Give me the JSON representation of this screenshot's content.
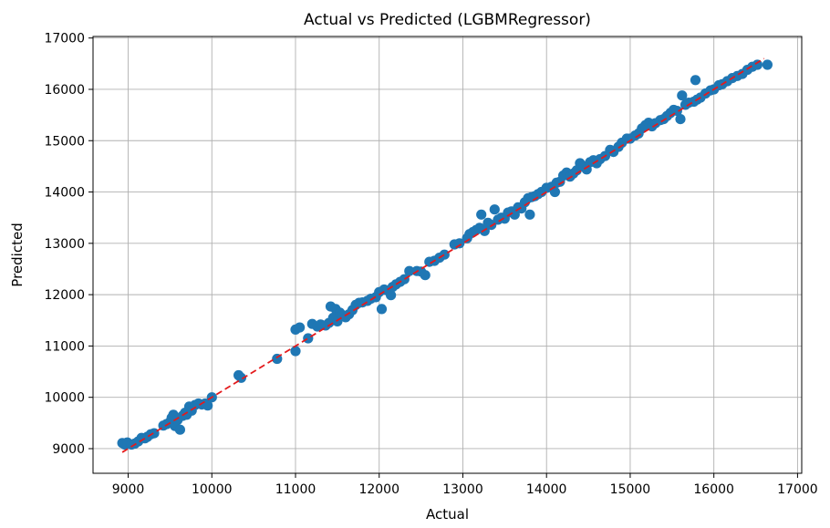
{
  "chart_data": {
    "type": "scatter",
    "title": "Actual vs Predicted (LGBMRegressor)",
    "xlabel": "Actual",
    "ylabel": "Predicted",
    "xlim": [
      8580,
      17050
    ],
    "ylim": [
      8520,
      17030
    ],
    "xticks": [
      9000,
      10000,
      11000,
      12000,
      13000,
      14000,
      15000,
      16000,
      17000
    ],
    "yticks": [
      9000,
      10000,
      11000,
      12000,
      13000,
      14000,
      15000,
      16000,
      17000
    ],
    "grid": true,
    "point_color": "#1f77b4",
    "reference_line": {
      "style": "dashed",
      "color": "#e41a1c",
      "from": [
        8930,
        8930
      ],
      "to": [
        16600,
        16600
      ]
    },
    "points": [
      [
        8930,
        9110
      ],
      [
        8960,
        9080
      ],
      [
        8990,
        9120
      ],
      [
        9040,
        9080
      ],
      [
        9080,
        9100
      ],
      [
        9120,
        9140
      ],
      [
        9160,
        9210
      ],
      [
        9200,
        9200
      ],
      [
        9230,
        9230
      ],
      [
        9270,
        9280
      ],
      [
        9310,
        9300
      ],
      [
        9420,
        9450
      ],
      [
        9460,
        9480
      ],
      [
        9500,
        9520
      ],
      [
        9520,
        9600
      ],
      [
        9540,
        9660
      ],
      [
        9560,
        9440
      ],
      [
        9590,
        9560
      ],
      [
        9620,
        9370
      ],
      [
        9650,
        9640
      ],
      [
        9680,
        9700
      ],
      [
        9700,
        9660
      ],
      [
        9730,
        9820
      ],
      [
        9760,
        9740
      ],
      [
        9800,
        9850
      ],
      [
        9840,
        9880
      ],
      [
        9880,
        9860
      ],
      [
        9920,
        9880
      ],
      [
        9950,
        9840
      ],
      [
        10000,
        10000
      ],
      [
        10320,
        10430
      ],
      [
        10350,
        10380
      ],
      [
        10780,
        10750
      ],
      [
        11000,
        10900
      ],
      [
        11000,
        11320
      ],
      [
        11050,
        11360
      ],
      [
        11150,
        11150
      ],
      [
        11200,
        11430
      ],
      [
        11260,
        11380
      ],
      [
        11300,
        11420
      ],
      [
        11360,
        11400
      ],
      [
        11400,
        11450
      ],
      [
        11420,
        11770
      ],
      [
        11450,
        11550
      ],
      [
        11480,
        11720
      ],
      [
        11500,
        11480
      ],
      [
        11530,
        11650
      ],
      [
        11560,
        11600
      ],
      [
        11600,
        11560
      ],
      [
        11640,
        11620
      ],
      [
        11680,
        11700
      ],
      [
        11720,
        11800
      ],
      [
        11760,
        11840
      ],
      [
        11800,
        11850
      ],
      [
        11860,
        11880
      ],
      [
        11900,
        11920
      ],
      [
        11960,
        11950
      ],
      [
        12000,
        12050
      ],
      [
        12030,
        11720
      ],
      [
        12060,
        12100
      ],
      [
        12100,
        12080
      ],
      [
        12140,
        11990
      ],
      [
        12160,
        12150
      ],
      [
        12200,
        12200
      ],
      [
        12250,
        12250
      ],
      [
        12300,
        12300
      ],
      [
        12360,
        12460
      ],
      [
        12450,
        12460
      ],
      [
        12500,
        12450
      ],
      [
        12550,
        12380
      ],
      [
        12600,
        12640
      ],
      [
        12660,
        12660
      ],
      [
        12720,
        12720
      ],
      [
        12780,
        12780
      ],
      [
        12900,
        12980
      ],
      [
        12960,
        13000
      ],
      [
        13050,
        13100
      ],
      [
        13080,
        13180
      ],
      [
        13120,
        13220
      ],
      [
        13160,
        13260
      ],
      [
        13200,
        13300
      ],
      [
        13220,
        13560
      ],
      [
        13260,
        13240
      ],
      [
        13300,
        13400
      ],
      [
        13340,
        13360
      ],
      [
        13380,
        13660
      ],
      [
        13420,
        13460
      ],
      [
        13460,
        13500
      ],
      [
        13500,
        13480
      ],
      [
        13540,
        13600
      ],
      [
        13580,
        13620
      ],
      [
        13620,
        13560
      ],
      [
        13660,
        13700
      ],
      [
        13700,
        13680
      ],
      [
        13740,
        13800
      ],
      [
        13780,
        13880
      ],
      [
        13800,
        13560
      ],
      [
        13820,
        13900
      ],
      [
        13860,
        13920
      ],
      [
        13900,
        13960
      ],
      [
        13940,
        14000
      ],
      [
        14000,
        14080
      ],
      [
        14060,
        14100
      ],
      [
        14100,
        14000
      ],
      [
        14120,
        14180
      ],
      [
        14160,
        14200
      ],
      [
        14200,
        14320
      ],
      [
        14240,
        14380
      ],
      [
        14280,
        14300
      ],
      [
        14320,
        14360
      ],
      [
        14360,
        14420
      ],
      [
        14400,
        14560
      ],
      [
        14440,
        14500
      ],
      [
        14480,
        14440
      ],
      [
        14520,
        14580
      ],
      [
        14560,
        14620
      ],
      [
        14600,
        14560
      ],
      [
        14640,
        14640
      ],
      [
        14700,
        14700
      ],
      [
        14760,
        14820
      ],
      [
        14800,
        14780
      ],
      [
        14860,
        14880
      ],
      [
        14900,
        14960
      ],
      [
        14960,
        15040
      ],
      [
        15000,
        15040
      ],
      [
        15060,
        15100
      ],
      [
        15100,
        15140
      ],
      [
        15140,
        15240
      ],
      [
        15180,
        15300
      ],
      [
        15220,
        15350
      ],
      [
        15260,
        15280
      ],
      [
        15300,
        15340
      ],
      [
        15360,
        15400
      ],
      [
        15400,
        15420
      ],
      [
        15440,
        15480
      ],
      [
        15480,
        15540
      ],
      [
        15520,
        15600
      ],
      [
        15560,
        15580
      ],
      [
        15600,
        15420
      ],
      [
        15620,
        15880
      ],
      [
        15660,
        15700
      ],
      [
        15700,
        15740
      ],
      [
        15760,
        15760
      ],
      [
        15780,
        16180
      ],
      [
        15800,
        15800
      ],
      [
        15840,
        15840
      ],
      [
        15900,
        15920
      ],
      [
        15960,
        15980
      ],
      [
        16000,
        16000
      ],
      [
        16060,
        16080
      ],
      [
        16100,
        16100
      ],
      [
        16160,
        16160
      ],
      [
        16220,
        16220
      ],
      [
        16280,
        16260
      ],
      [
        16340,
        16300
      ],
      [
        16400,
        16380
      ],
      [
        16460,
        16440
      ],
      [
        16520,
        16480
      ],
      [
        16640,
        16480
      ]
    ]
  }
}
